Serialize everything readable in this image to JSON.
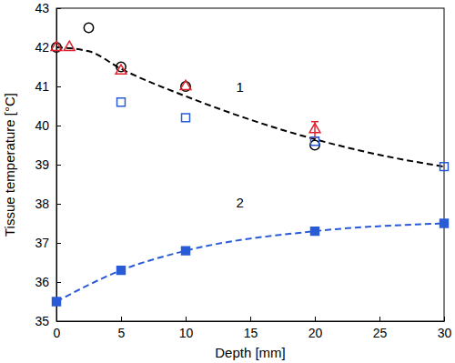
{
  "chart_data": {
    "type": "scatter",
    "xlabel": "Depth [mm]",
    "ylabel": "Tissue temperature [°C]",
    "xlim": [
      0,
      30
    ],
    "ylim": [
      35,
      43
    ],
    "xticks": [
      0,
      5,
      10,
      15,
      20,
      25,
      30
    ],
    "yticks": [
      35,
      36,
      37,
      38,
      39,
      40,
      41,
      42,
      43
    ],
    "grid": false,
    "series": [
      {
        "type": "line",
        "color": "#000000",
        "marker": "none",
        "line_style": "dashed",
        "x": [
          0,
          2.5,
          5,
          10,
          15,
          20,
          25,
          30
        ],
        "values": [
          42.0,
          41.9,
          41.45,
          40.75,
          40.15,
          39.65,
          39.25,
          38.95
        ]
      },
      {
        "type": "line",
        "color": "#2a5bd7",
        "marker": "square",
        "line_style": "dashed",
        "x": [
          0,
          5,
          10,
          20,
          30
        ],
        "values": [
          35.5,
          36.3,
          36.8,
          37.3,
          37.5
        ]
      },
      {
        "type": "scatter",
        "color": "#000000",
        "marker": "circle-open",
        "line_style": "none",
        "x": [
          0,
          2.5,
          5,
          10,
          20
        ],
        "values": [
          42.0,
          42.5,
          41.5,
          41.0,
          39.5
        ]
      },
      {
        "type": "scatter",
        "color": "#e3202e",
        "marker": "triangle-open",
        "line_style": "none",
        "x": [
          0,
          1,
          5,
          10,
          20
        ],
        "values": [
          42.0,
          42.0,
          41.4,
          41.0,
          39.9
        ],
        "errors": [
          null,
          null,
          null,
          null,
          0.2
        ]
      },
      {
        "type": "scatter",
        "color": "#2a5bd7",
        "marker": "square-open",
        "line_style": "none",
        "x": [
          5,
          10,
          20,
          30
        ],
        "values": [
          40.6,
          40.2,
          39.6,
          38.95
        ]
      }
    ],
    "annotations": [
      {
        "text": "1",
        "x": 14.2,
        "y": 40.95
      },
      {
        "text": "2",
        "x": 14.2,
        "y": 38.0
      }
    ]
  }
}
